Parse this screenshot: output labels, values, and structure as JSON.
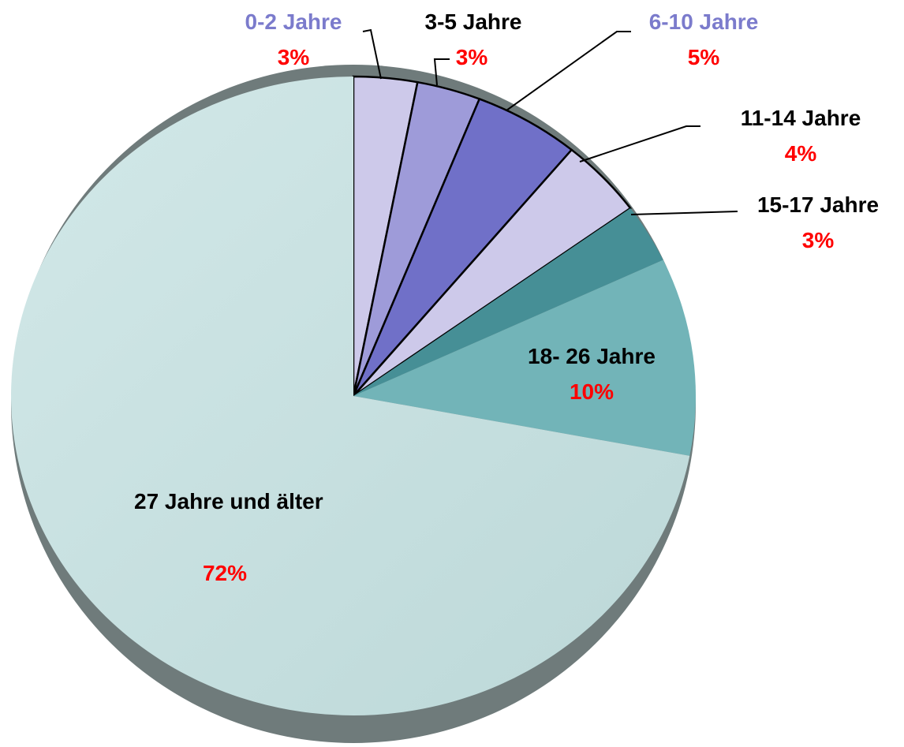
{
  "chart_data": {
    "type": "pie",
    "categories": [
      "0-2 Jahre",
      "3-5 Jahre",
      "6-10 Jahre",
      "11-14  Jahre",
      "15-17 Jahre",
      "18- 26 Jahre",
      "27 Jahre und älter"
    ],
    "values": [
      3,
      3,
      5,
      4,
      3,
      10,
      72
    ],
    "value_labels": [
      "3%",
      "3%",
      "5%",
      "4%",
      "3%",
      "10%",
      "72%"
    ],
    "colors": [
      "#cdc9ea",
      "#9e9bd9",
      "#7070c8",
      "#cdc9ea",
      "#468f96",
      "#72b4b8",
      "#c6e1e1"
    ]
  }
}
